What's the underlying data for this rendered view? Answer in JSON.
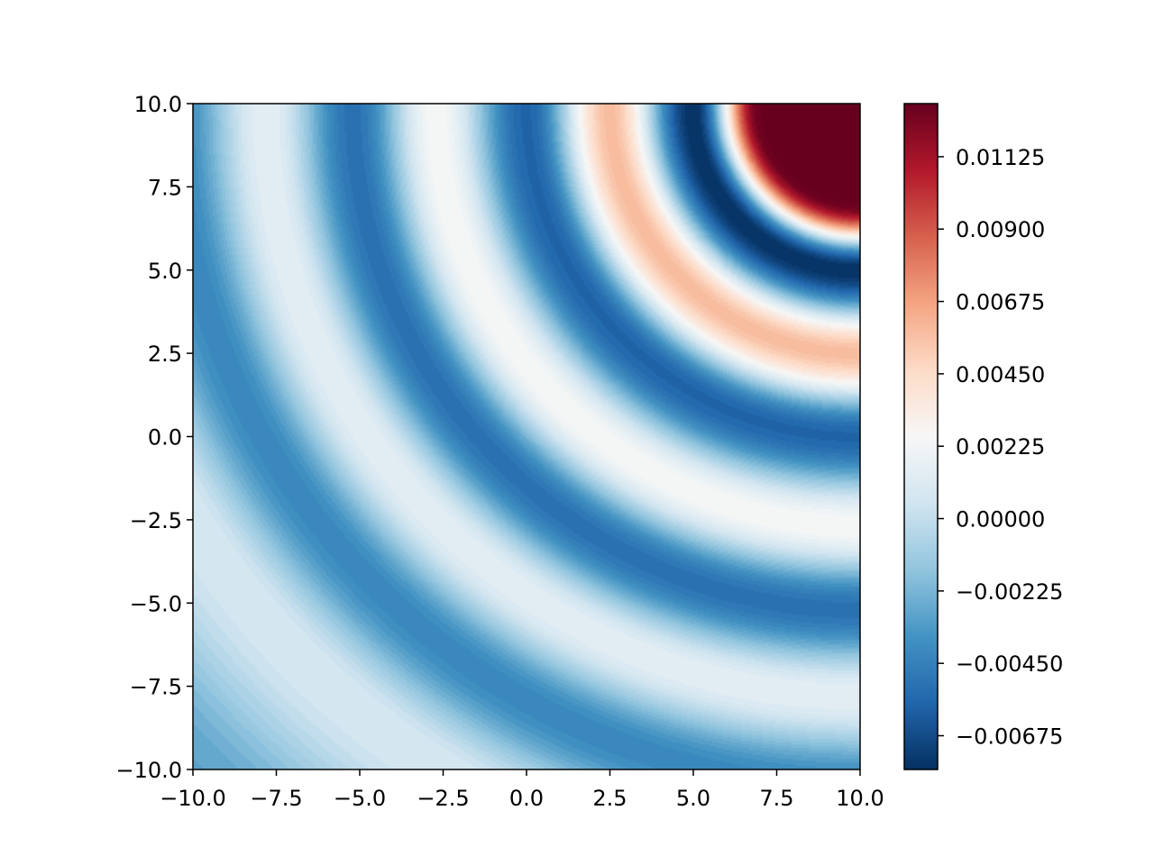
{
  "chart_data": {
    "type": "heatmap",
    "subtype": "filled-contour",
    "title": "",
    "xlabel": "",
    "ylabel": "",
    "xlim": [
      -10.0,
      10.0
    ],
    "ylim": [
      -10.0,
      10.0
    ],
    "grid": false,
    "colormap": "RdBu_r",
    "colormap_stops": [
      {
        "t": 0.0,
        "color": "#053061"
      },
      {
        "t": 0.1,
        "color": "#2166ac"
      },
      {
        "t": 0.2,
        "color": "#4393c3"
      },
      {
        "t": 0.3,
        "color": "#92c5de"
      },
      {
        "t": 0.4,
        "color": "#d1e5f0"
      },
      {
        "t": 0.5,
        "color": "#f7f7f7"
      },
      {
        "t": 0.6,
        "color": "#fddbc7"
      },
      {
        "t": 0.7,
        "color": "#f4a582"
      },
      {
        "t": 0.8,
        "color": "#d6604d"
      },
      {
        "t": 0.9,
        "color": "#b2182b"
      },
      {
        "t": 1.0,
        "color": "#67001f"
      }
    ],
    "x_ticks": [
      "−10.0",
      "−7.5",
      "−5.0",
      "−2.5",
      "0.0",
      "2.5",
      "5.0",
      "7.5",
      "10.0"
    ],
    "x_tick_values": [
      -10.0,
      -7.5,
      -5.0,
      -2.5,
      0.0,
      2.5,
      5.0,
      7.5,
      10.0
    ],
    "y_ticks": [
      "−10.0",
      "−7.5",
      "−5.0",
      "−2.5",
      "0.0",
      "2.5",
      "5.0",
      "7.5",
      "10.0"
    ],
    "y_tick_values": [
      -10.0,
      -7.5,
      -5.0,
      -2.5,
      0.0,
      2.5,
      5.0,
      7.5,
      10.0
    ],
    "colorbar": {
      "range": [
        -0.0078,
        0.0129
      ],
      "ticks": [
        "0.01125",
        "0.00900",
        "0.00675",
        "0.00450",
        "0.00225",
        "0.00000",
        "−0.00225",
        "−0.00450",
        "−0.00675"
      ],
      "tick_values": [
        0.01125,
        0.009,
        0.00675,
        0.0045,
        0.00225,
        0.0,
        -0.00225,
        -0.0045,
        -0.00675
      ]
    },
    "field": {
      "description": "concentric circular waves centred at the top-right corner",
      "center": [
        10.0,
        10.0
      ],
      "radius": [
        3.0,
        5.0,
        7.5,
        10.0,
        12.7,
        15.2,
        17.8,
        20.5,
        23.5,
        28.3
      ],
      "value": [
        0.0129,
        -0.0078,
        0.0058,
        -0.0058,
        0.0025,
        -0.0052,
        0.0015,
        -0.0042,
        0.0008,
        -0.003
      ]
    }
  }
}
